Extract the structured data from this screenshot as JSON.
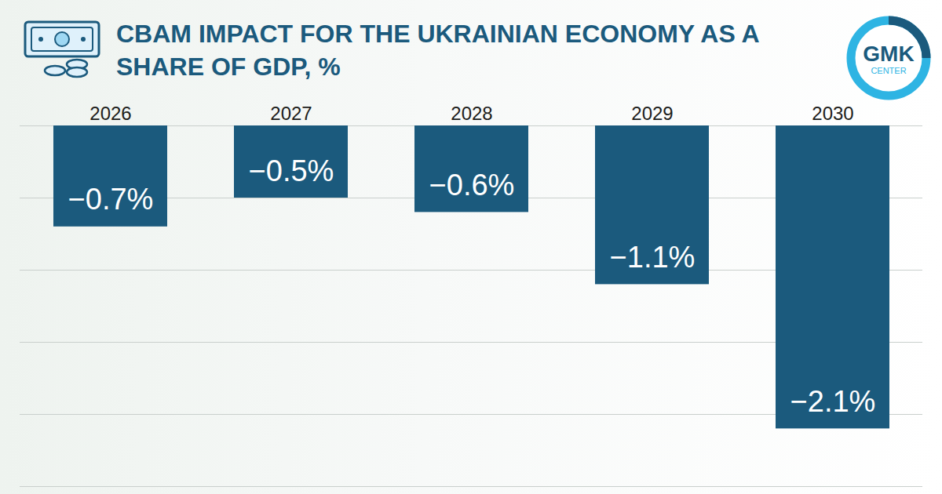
{
  "chart_data": {
    "type": "bar",
    "title": "CBAM IMPACT FOR THE UKRAINIAN ECONOMY AS A SHARE OF GDP, %",
    "categories": [
      "2026",
      "2027",
      "2028",
      "2029",
      "2030"
    ],
    "values": [
      -0.7,
      -0.5,
      -0.6,
      -1.1,
      -2.1
    ],
    "value_labels": [
      "−0.7%",
      "−0.5%",
      "−0.6%",
      "−1.1%",
      "−2.1%"
    ],
    "color": "#1b5a7d",
    "ylim": [
      -2.5,
      0
    ],
    "yticks": [
      -2.5,
      -2,
      -1.5,
      -1,
      -0.5,
      0
    ],
    "grid": true,
    "data_labels": true,
    "tick_labels": "x",
    "annotations": [
      "GMK",
      "CENTER"
    ]
  }
}
